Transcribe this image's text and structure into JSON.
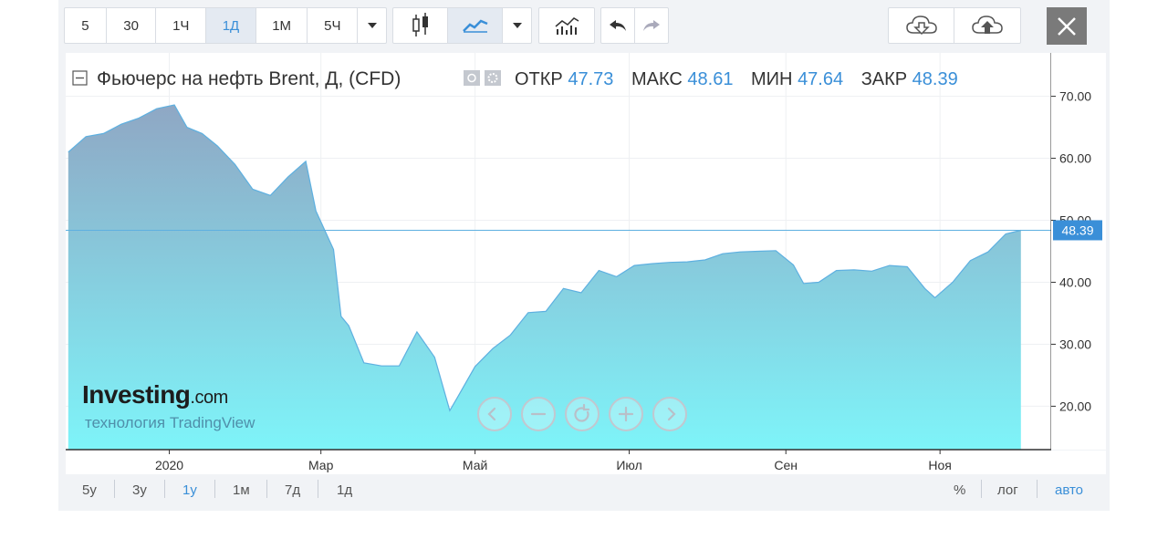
{
  "toolbar": {
    "intervals": [
      "5",
      "30",
      "1Ч",
      "1Д",
      "1М",
      "5Ч"
    ],
    "active_interval": "1Д",
    "icons": [
      "dropdown-icon",
      "candles-icon",
      "area-line-icon",
      "dropdown-icon",
      "indicators-icon",
      "undo-icon",
      "redo-icon",
      "cloud-download-icon",
      "cloud-upload-icon",
      "close-icon"
    ]
  },
  "legend": {
    "title": "Фьючерс на нефть Brent, Д, (CFD)",
    "open_label": "ОТКР",
    "open_value": "47.73",
    "high_label": "МАКС",
    "high_value": "48.61",
    "low_label": "МИН",
    "low_value": "47.64",
    "close_label": "ЗАКР",
    "close_value": "48.39"
  },
  "watermark": {
    "brand": "Investing",
    "brand_suffix": ".com",
    "tagline": "технология TradingView"
  },
  "bottombar": {
    "ranges": [
      "5y",
      "3y",
      "1y",
      "1м",
      "7д",
      "1д"
    ],
    "active_range": "1y",
    "options": [
      "%",
      "лог",
      "авто"
    ],
    "active_option": "авто"
  },
  "nav_icons": [
    "scroll-left-icon",
    "zoom-out-icon",
    "reset-icon",
    "zoom-in-icon",
    "scroll-right-icon"
  ],
  "colors": {
    "line": "#5eb0e0",
    "area_top": "#8fa7c4",
    "area_bottom": "#7ef4f9",
    "accent": "#3a8fd8",
    "price_tag": "#3a8fd8"
  },
  "chart_data": {
    "type": "area",
    "title": "Фьючерс на нефть Brent, Д, (CFD)",
    "x_tick_labels": [
      "2020",
      "Мар",
      "Май",
      "Июл",
      "Сен",
      "Ноя"
    ],
    "x_ticks": [
      "2020-01-01",
      "2020-03-01",
      "2020-05-01",
      "2020-07-01",
      "2020-09-01",
      "2020-11-01"
    ],
    "y_tick_labels": [
      "20.00",
      "30.00",
      "40.00",
      "50.00",
      "60.00",
      "70.00"
    ],
    "y_ticks": [
      20,
      30,
      40,
      50,
      60,
      70
    ],
    "ylim": [
      13,
      77
    ],
    "xlim": [
      "2019-11-21",
      "2020-12-15"
    ],
    "last_price_label": "48.39",
    "last_price": 48.39,
    "grid": true,
    "series": [
      {
        "x": [
          "2019-11-22",
          "2019-11-29",
          "2019-12-06",
          "2019-12-13",
          "2019-12-20",
          "2019-12-27",
          "2020-01-03",
          "2020-01-08",
          "2020-01-14",
          "2020-01-20",
          "2020-01-27",
          "2020-02-03",
          "2020-02-10",
          "2020-02-17",
          "2020-02-24",
          "2020-02-28",
          "2020-03-06",
          "2020-03-09",
          "2020-03-12",
          "2020-03-18",
          "2020-03-25",
          "2020-04-01",
          "2020-04-08",
          "2020-04-15",
          "2020-04-21",
          "2020-04-24",
          "2020-05-01",
          "2020-05-08",
          "2020-05-15",
          "2020-05-22",
          "2020-05-29",
          "2020-06-05",
          "2020-06-12",
          "2020-06-19",
          "2020-06-26",
          "2020-07-03",
          "2020-07-10",
          "2020-07-17",
          "2020-07-24",
          "2020-07-31",
          "2020-08-07",
          "2020-08-14",
          "2020-08-21",
          "2020-08-28",
          "2020-09-04",
          "2020-09-08",
          "2020-09-14",
          "2020-09-21",
          "2020-09-28",
          "2020-10-05",
          "2020-10-12",
          "2020-10-19",
          "2020-10-26",
          "2020-10-30",
          "2020-11-06",
          "2020-11-13",
          "2020-11-20",
          "2020-11-27",
          "2020-12-03"
        ],
        "values": [
          61.0,
          63.5,
          64.0,
          65.5,
          66.5,
          68.0,
          68.6,
          65.0,
          64.0,
          62.0,
          59.0,
          55.0,
          54.0,
          57.0,
          59.5,
          51.5,
          45.3,
          34.5,
          33.0,
          27.0,
          26.5,
          26.5,
          32.0,
          27.9,
          19.3,
          21.4,
          26.4,
          29.3,
          31.5,
          35.1,
          35.3,
          39.0,
          38.3,
          41.9,
          40.9,
          42.7,
          43.0,
          43.2,
          43.3,
          43.6,
          44.6,
          44.9,
          45.0,
          45.1,
          42.8,
          39.8,
          40.0,
          41.9,
          42.0,
          41.8,
          42.7,
          42.5,
          39.0,
          37.5,
          40.0,
          43.5,
          44.9,
          47.8,
          48.39
        ]
      }
    ]
  }
}
